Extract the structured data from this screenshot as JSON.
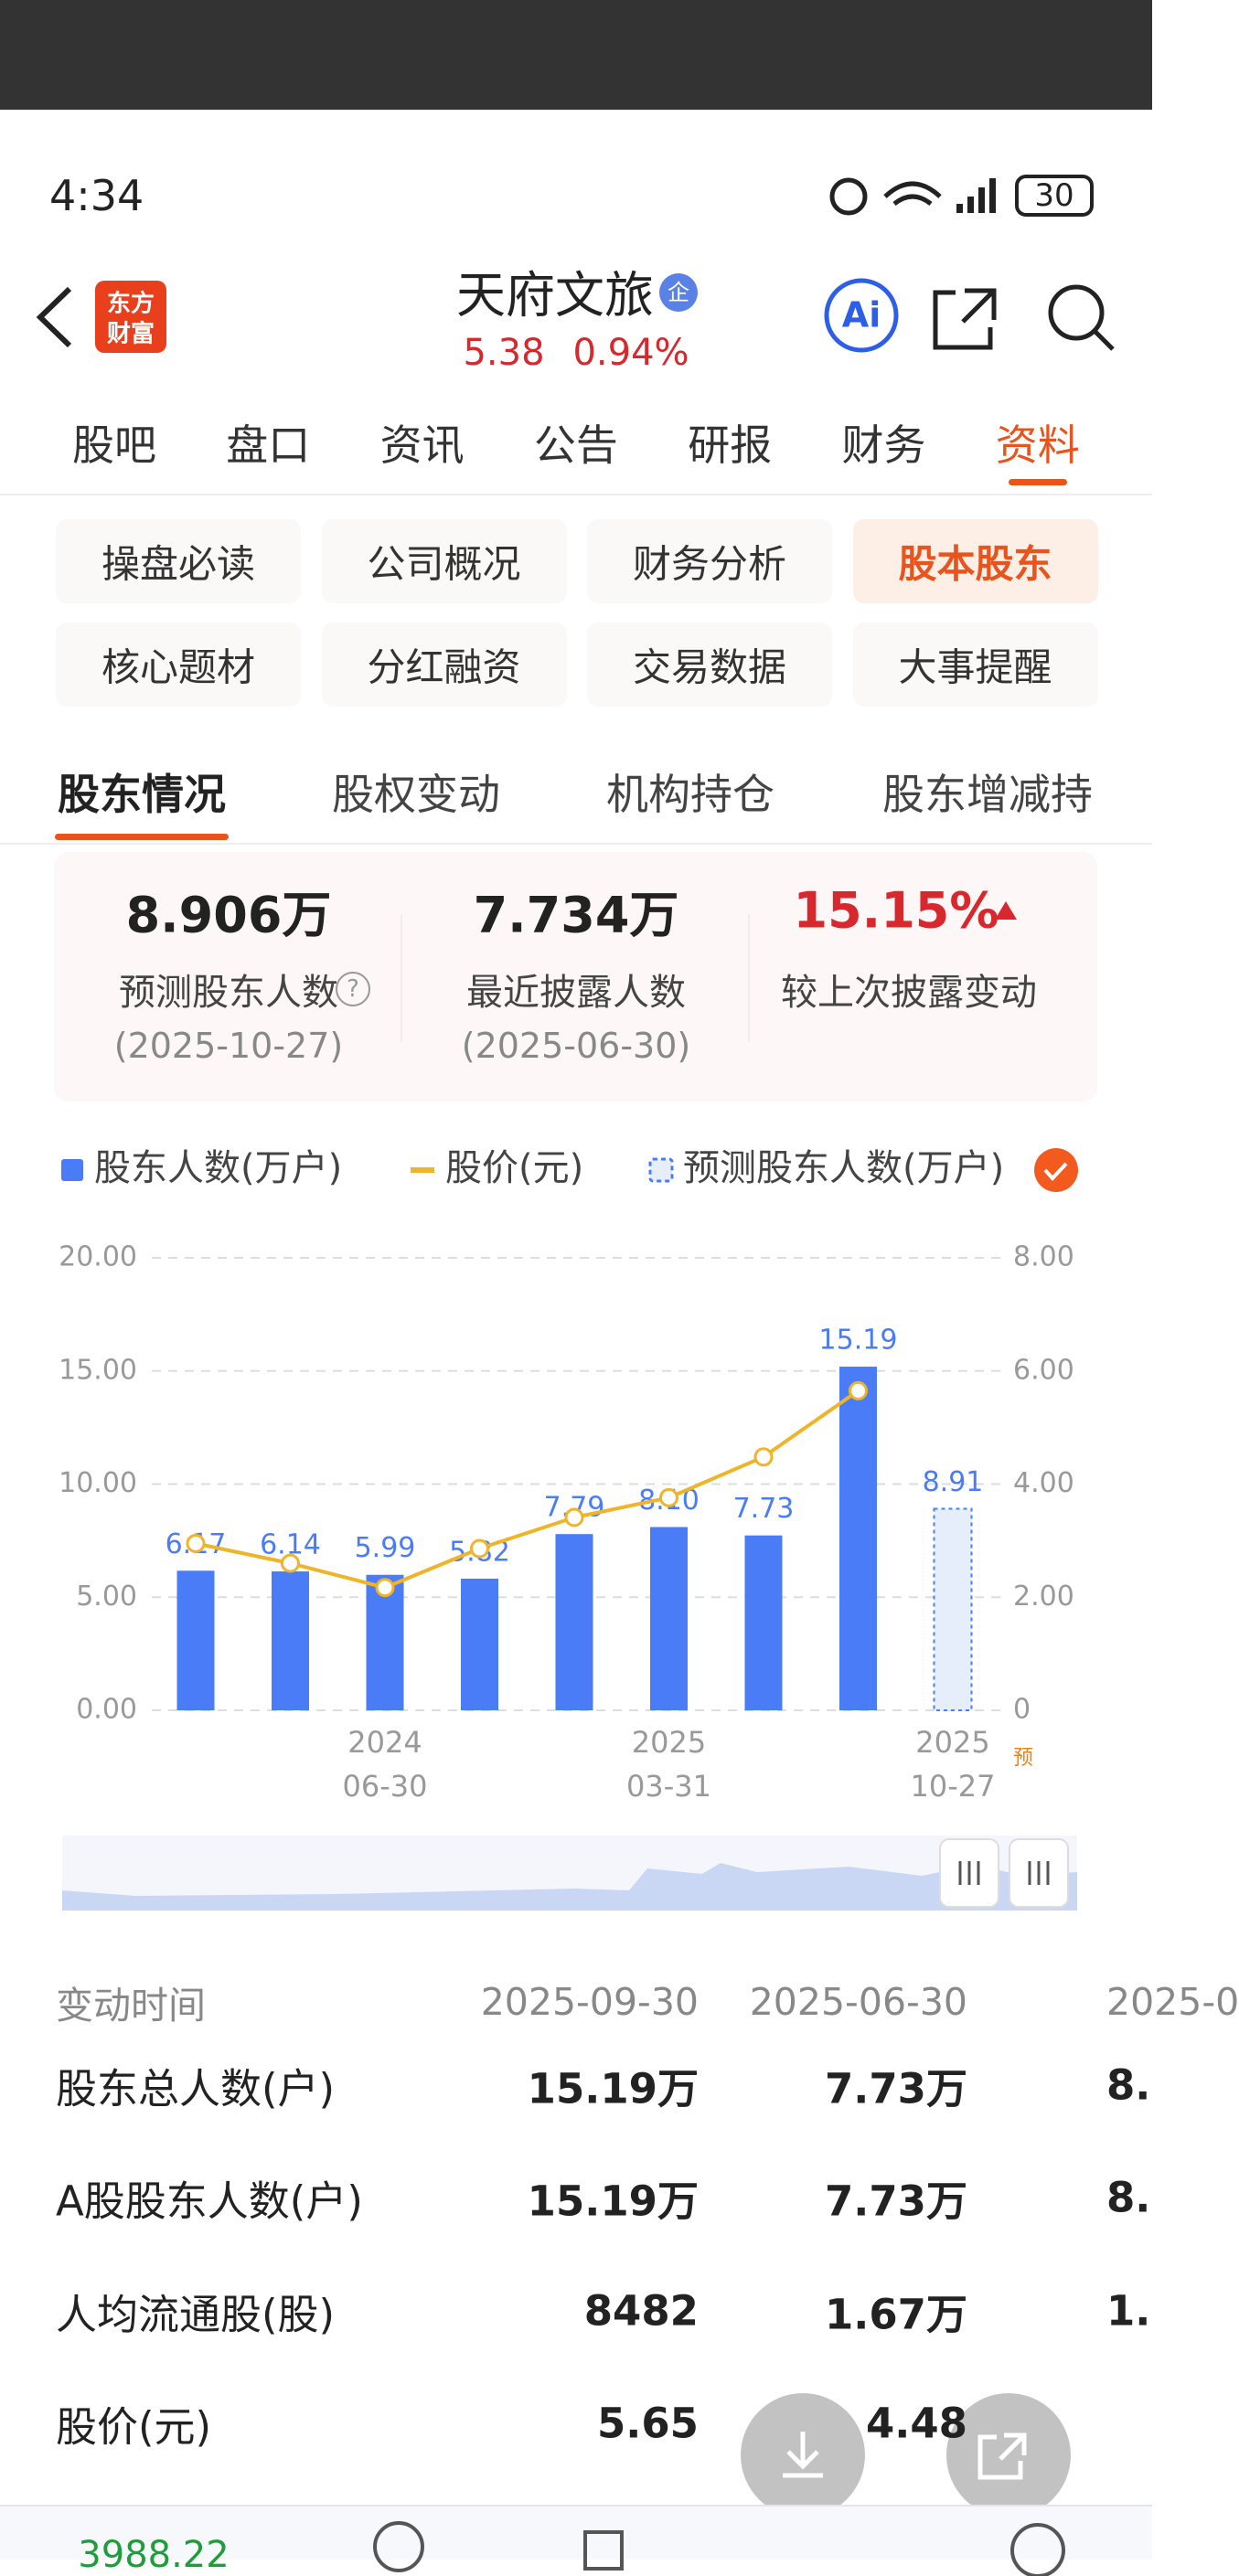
{
  "status_bar": {
    "time": "4:34",
    "battery": "30"
  },
  "header": {
    "logo": [
      "东方",
      "财富"
    ],
    "title": "天府文旅",
    "badge": "企",
    "price": "5.38",
    "change": "0.94%"
  },
  "nav_tabs": {
    "items": [
      "股吧",
      "盘口",
      "资讯",
      "公告",
      "研报",
      "财务",
      "资料"
    ],
    "active": 6
  },
  "feature_buttons": {
    "items": [
      "操盘必读",
      "公司概况",
      "财务分析",
      "股本股东",
      "核心题材",
      "分红融资",
      "交易数据",
      "大事提醒"
    ],
    "active": 3
  },
  "sub_tabs": {
    "items": [
      "股东情况",
      "股权变动",
      "机构持仓",
      "股东增减持"
    ],
    "active": 0
  },
  "summary": {
    "items": [
      {
        "value": "8.906万",
        "label": "预测股东人数",
        "date": "(2025-10-27)"
      },
      {
        "value": "7.734万",
        "label": "最近披露人数",
        "date": "(2025-06-30)"
      },
      {
        "value": "15.15%",
        "label": "较上次披露变动"
      }
    ]
  },
  "chart_data": {
    "type": "bar",
    "categories": [
      null,
      null,
      "2024\n06-30",
      null,
      null,
      "2025\n03-31",
      null,
      null,
      "2025\n10-27"
    ],
    "forecast_mark": "预",
    "series": [
      {
        "name": "股东人数(万户)",
        "color": "#4a7cf7",
        "values": [
          6.17,
          6.14,
          5.99,
          5.82,
          7.79,
          8.1,
          7.73,
          15.19,
          null
        ],
        "value_labels": [
          "6.17",
          "6.14",
          "5.99",
          "5.82",
          "7.79",
          "8.10",
          "7.73",
          "15.19",
          null
        ]
      },
      {
        "name": "股价(元)",
        "type": "line",
        "axis": "y2",
        "color": "#f0b429",
        "values": [
          2.95,
          2.6,
          2.17,
          2.86,
          3.41,
          3.76,
          4.48,
          5.65,
          null
        ]
      },
      {
        "name": "预测股东人数(万户)",
        "style": "dashed",
        "color": "#4a7cf7",
        "values": [
          null,
          null,
          null,
          null,
          null,
          null,
          null,
          null,
          8.91
        ]
      }
    ],
    "ylim": [
      0,
      20
    ],
    "yticks": [
      {
        "value": 0,
        "label": "0.00"
      },
      {
        "value": 5,
        "label": "5.00"
      },
      {
        "value": 10,
        "label": "10.00"
      },
      {
        "value": 15,
        "label": "15.00"
      },
      {
        "value": 20,
        "label": "20.00"
      }
    ],
    "y2lim": [
      0,
      8
    ],
    "y2ticks": [
      0,
      {
        "value": 2,
        "label": "2.00"
      },
      {
        "value": 4,
        "label": "4.00"
      },
      {
        "value": 6,
        "label": "6.00"
      },
      {
        "value": 8,
        "label": "8.00"
      }
    ],
    "grid": true
  },
  "table": {
    "header": [
      "变动时间",
      "2025-09-30",
      "2025-06-30",
      "2025-0"
    ],
    "rows": [
      [
        "股东总人数(户)",
        "15.19万",
        "7.73万",
        "8."
      ],
      [
        "A股股东人数(户)",
        "15.19万",
        "7.73万",
        "8."
      ],
      [
        "人均流通股(股)",
        "8482",
        "1.67万",
        "1."
      ],
      [
        "股价(元)",
        "5.65",
        "4.48",
        ""
      ]
    ]
  },
  "bottom_bar": {
    "index": "3988.22"
  }
}
